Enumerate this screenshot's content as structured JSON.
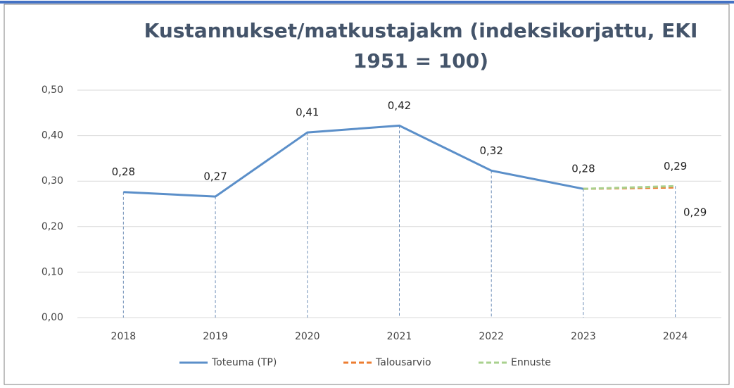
{
  "chart_data": {
    "type": "line",
    "title": "Kustannukset/matkustajakm (indeksikorjattu, EKI",
    "subtitle": "1951 = 100)",
    "categories": [
      "2018",
      "2019",
      "2020",
      "2021",
      "2022",
      "2023",
      "2024"
    ],
    "series": [
      {
        "name": "Toteuma (TP)",
        "color": "#5b8fc9",
        "dashed": false,
        "values": [
          0.276,
          0.266,
          0.407,
          0.422,
          0.323,
          0.283,
          null
        ],
        "value_labels": [
          "0,28",
          "0,27",
          "0,41",
          "0,42",
          "0,32",
          "0,28",
          null
        ]
      },
      {
        "name": "Talousarvio",
        "color": "#ed7d31",
        "dashed": true,
        "values": [
          null,
          null,
          null,
          null,
          null,
          0.283,
          0.286
        ],
        "value_labels": [
          null,
          null,
          null,
          null,
          null,
          null,
          "0,29"
        ]
      },
      {
        "name": "Ennuste",
        "color": "#a9d18e",
        "dashed": true,
        "values": [
          null,
          null,
          null,
          null,
          null,
          0.283,
          0.289
        ],
        "value_labels": [
          null,
          null,
          null,
          null,
          null,
          null,
          "0,29"
        ]
      }
    ],
    "ylim": [
      0,
      0.5
    ],
    "yticks": [
      {
        "value": 0,
        "label": "0,00"
      },
      {
        "value": 0.1,
        "label": "0,10"
      },
      {
        "value": 0.2,
        "label": "0,20"
      },
      {
        "value": 0.3,
        "label": "0,30"
      },
      {
        "value": 0.4,
        "label": "0,40"
      },
      {
        "value": 0.5,
        "label": "0,50"
      }
    ],
    "grid": true,
    "legend": "bottom"
  }
}
